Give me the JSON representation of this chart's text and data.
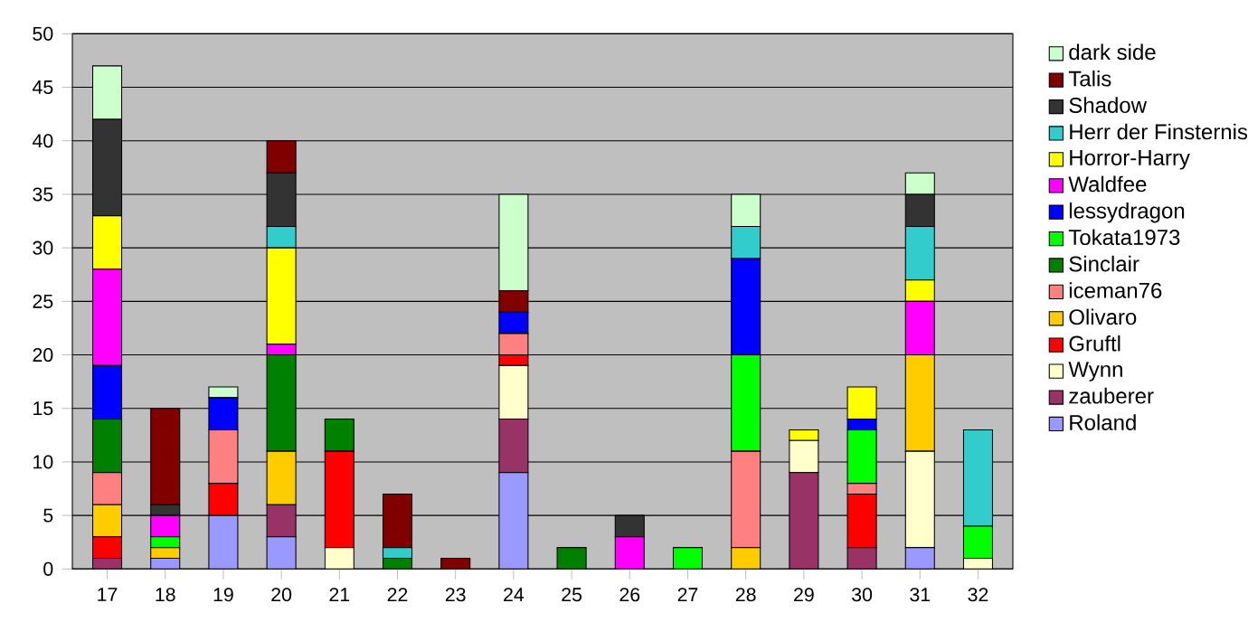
{
  "chart_data": {
    "type": "bar",
    "stacked": true,
    "categories": [
      "17",
      "18",
      "19",
      "20",
      "21",
      "22",
      "23",
      "24",
      "25",
      "26",
      "27",
      "28",
      "29",
      "30",
      "31",
      "32"
    ],
    "series": [
      {
        "name": "Roland",
        "color": "#9999ff",
        "values": [
          0,
          1,
          5,
          3,
          0,
          0,
          0,
          9,
          0,
          0,
          0,
          0,
          0,
          0,
          2,
          0
        ]
      },
      {
        "name": "zauberer",
        "color": "#993366",
        "values": [
          1,
          0,
          0,
          3,
          0,
          0,
          0,
          5,
          0,
          0,
          0,
          0,
          9,
          2,
          0,
          0
        ]
      },
      {
        "name": "Wynn",
        "color": "#ffffcc",
        "values": [
          0,
          0,
          0,
          0,
          2,
          0,
          0,
          5,
          0,
          0,
          0,
          0,
          3,
          0,
          9,
          1
        ]
      },
      {
        "name": "Gruftl",
        "color": "#ff0000",
        "values": [
          2,
          0,
          3,
          0,
          9,
          0,
          0,
          1,
          0,
          0,
          0,
          0,
          0,
          5,
          0,
          0
        ]
      },
      {
        "name": "Olivaro",
        "color": "#ffcc00",
        "values": [
          3,
          1,
          0,
          5,
          0,
          0,
          0,
          0,
          0,
          0,
          0,
          2,
          0,
          0,
          9,
          0
        ]
      },
      {
        "name": "iceman76",
        "color": "#ff8080",
        "values": [
          3,
          0,
          5,
          0,
          0,
          0,
          0,
          2,
          0,
          0,
          0,
          9,
          0,
          1,
          0,
          0
        ]
      },
      {
        "name": "Sinclair",
        "color": "#008000",
        "values": [
          5,
          0,
          0,
          9,
          3,
          1,
          0,
          0,
          2,
          0,
          0,
          0,
          0,
          0,
          0,
          0
        ]
      },
      {
        "name": "Tokata1973",
        "color": "#00ff00",
        "values": [
          0,
          1,
          0,
          0,
          0,
          0,
          0,
          0,
          0,
          0,
          2,
          9,
          0,
          5,
          0,
          3
        ]
      },
      {
        "name": "lessydragon",
        "color": "#0000ff",
        "values": [
          5,
          0,
          3,
          0,
          0,
          0,
          0,
          2,
          0,
          0,
          0,
          9,
          0,
          1,
          0,
          0
        ]
      },
      {
        "name": "Waldfee",
        "color": "#ff00ff",
        "values": [
          9,
          2,
          0,
          1,
          0,
          0,
          0,
          0,
          0,
          3,
          0,
          0,
          0,
          0,
          5,
          0
        ]
      },
      {
        "name": "Horror-Harry",
        "color": "#ffff00",
        "values": [
          5,
          0,
          0,
          9,
          0,
          0,
          0,
          0,
          0,
          0,
          0,
          0,
          1,
          3,
          2,
          0
        ]
      },
      {
        "name": "Herr der Finsternis",
        "color": "#33cccc",
        "values": [
          0,
          0,
          0,
          2,
          0,
          1,
          0,
          0,
          0,
          0,
          0,
          3,
          0,
          0,
          5,
          9
        ]
      },
      {
        "name": "Shadow",
        "color": "#333333",
        "values": [
          9,
          1,
          0,
          5,
          0,
          0,
          0,
          0,
          0,
          2,
          0,
          0,
          0,
          0,
          3,
          0
        ]
      },
      {
        "name": "Talis",
        "color": "#800000",
        "values": [
          0,
          9,
          0,
          3,
          0,
          5,
          1,
          2,
          0,
          0,
          0,
          0,
          0,
          0,
          0,
          0
        ]
      },
      {
        "name": "dark side",
        "color": "#ccffcc",
        "values": [
          5,
          0,
          1,
          0,
          0,
          0,
          0,
          9,
          0,
          0,
          0,
          3,
          0,
          0,
          2,
          0
        ]
      }
    ],
    "ylim": [
      0,
      50
    ],
    "yticks": [
      0,
      5,
      10,
      15,
      20,
      25,
      30,
      35,
      40,
      45,
      50
    ],
    "grid": "y",
    "legend": "right"
  }
}
